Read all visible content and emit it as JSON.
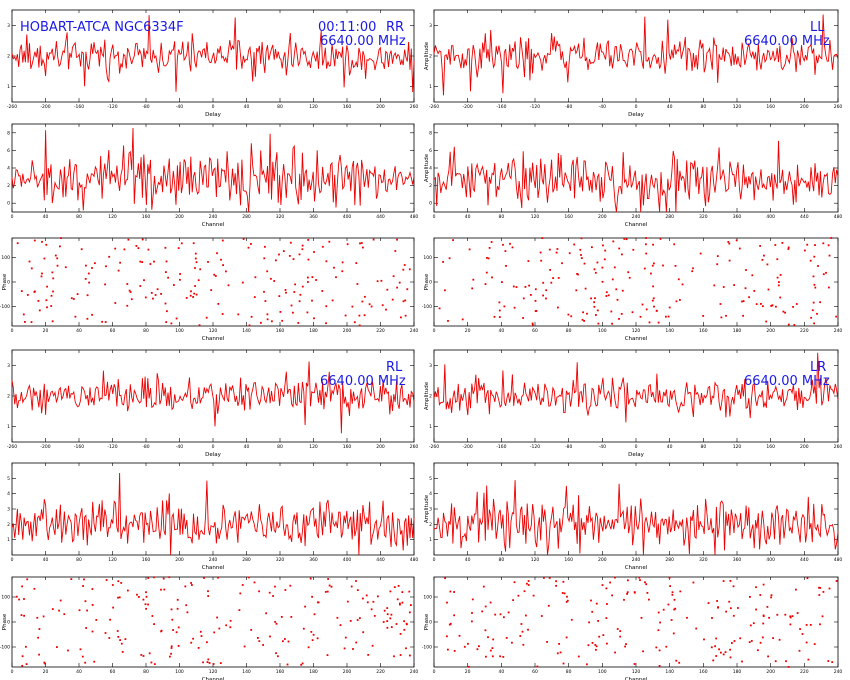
{
  "colors": {
    "trace": "#ee0000",
    "annotation": "#1a1ae6",
    "frame": "#000000"
  },
  "header": {
    "source": "HOBART-ATCA NGC6334F",
    "time": "00:11:00",
    "frequency": "6640.00 MHz"
  },
  "chart_data": [
    {
      "id": "rr_delay",
      "type": "line",
      "pol": "RR",
      "xlabel": "Delay",
      "ylabel": "",
      "xticks": [
        "-260",
        "-200",
        "-160",
        "-120",
        "-80",
        "-40",
        "0",
        "40",
        "80",
        "120",
        "160",
        "200",
        "260"
      ],
      "yticks": [
        "1",
        "2",
        "3"
      ],
      "ylim": [
        0.5,
        3.5
      ],
      "npoints": 300,
      "mean": 2.0,
      "spread": 0.35
    },
    {
      "id": "ll_delay",
      "type": "line",
      "pol": "LL",
      "xlabel": "Delay",
      "ylabel": "Amplitude",
      "xticks": [
        "-260",
        "-200",
        "-160",
        "-120",
        "-80",
        "-40",
        "0",
        "40",
        "80",
        "120",
        "160",
        "200",
        "260"
      ],
      "yticks": [
        "1",
        "2",
        "3"
      ],
      "ylim": [
        0.5,
        3.5
      ],
      "npoints": 300,
      "mean": 2.0,
      "spread": 0.35
    },
    {
      "id": "rr_channel",
      "type": "line",
      "pol": "RR",
      "xlabel": "Channel",
      "ylabel": "",
      "xticks": [
        "0",
        "40",
        "80",
        "120",
        "160",
        "200",
        "240",
        "280",
        "320",
        "360",
        "400",
        "440",
        "480"
      ],
      "yticks": [
        "0",
        "2",
        "4",
        "6",
        "8"
      ],
      "ylim": [
        -1,
        9
      ],
      "npoints": 300,
      "mean": 2.8,
      "spread": 1.6
    },
    {
      "id": "ll_channel",
      "type": "line",
      "pol": "LL",
      "xlabel": "Channel",
      "ylabel": "Amplitude",
      "xticks": [
        "0",
        "40",
        "80",
        "120",
        "160",
        "200",
        "240",
        "280",
        "320",
        "360",
        "400",
        "440",
        "480"
      ],
      "yticks": [
        "0",
        "2",
        "4",
        "6",
        "8"
      ],
      "ylim": [
        -1,
        9
      ],
      "npoints": 300,
      "mean": 2.6,
      "spread": 1.5
    },
    {
      "id": "rr_phase",
      "type": "scatter",
      "pol": "RR",
      "xlabel": "Channel",
      "ylabel": "Phase",
      "xticks": [
        "0",
        "20",
        "40",
        "60",
        "80",
        "100",
        "120",
        "140",
        "160",
        "180",
        "200",
        "220",
        "240"
      ],
      "yticks": [
        "-100",
        "0",
        "100"
      ],
      "ylim": [
        -180,
        180
      ],
      "npoints": 220
    },
    {
      "id": "ll_phase",
      "type": "scatter",
      "pol": "LL",
      "xlabel": "Channel",
      "ylabel": "Phase",
      "xticks": [
        "0",
        "20",
        "40",
        "60",
        "80",
        "100",
        "120",
        "140",
        "160",
        "180",
        "200",
        "220",
        "240"
      ],
      "yticks": [
        "-100",
        "0",
        "100"
      ],
      "ylim": [
        -180,
        180
      ],
      "npoints": 220
    },
    {
      "id": "rl_delay",
      "type": "line",
      "pol": "RL",
      "xlabel": "Delay",
      "ylabel": "",
      "xticks": [
        "-260",
        "-200",
        "-160",
        "-120",
        "-80",
        "-40",
        "0",
        "40",
        "80",
        "120",
        "160",
        "200",
        "260"
      ],
      "yticks": [
        "1",
        "2",
        "3"
      ],
      "ylim": [
        0.5,
        3.5
      ],
      "npoints": 300,
      "mean": 2.0,
      "spread": 0.35
    },
    {
      "id": "lr_delay",
      "type": "line",
      "pol": "LR",
      "xlabel": "Delay",
      "ylabel": "Amplitude",
      "xticks": [
        "-260",
        "-200",
        "-160",
        "-120",
        "-80",
        "-40",
        "0",
        "40",
        "80",
        "120",
        "160",
        "200",
        "260"
      ],
      "yticks": [
        "1",
        "2",
        "3"
      ],
      "ylim": [
        0.5,
        3.5
      ],
      "npoints": 300,
      "mean": 2.0,
      "spread": 0.35
    },
    {
      "id": "rl_channel",
      "type": "line",
      "pol": "RL",
      "xlabel": "Channel",
      "ylabel": "",
      "xticks": [
        "0",
        "40",
        "80",
        "120",
        "160",
        "200",
        "240",
        "280",
        "320",
        "360",
        "400",
        "440",
        "480"
      ],
      "yticks": [
        "1",
        "2",
        "3",
        "4",
        "5"
      ],
      "ylim": [
        0,
        6
      ],
      "npoints": 300,
      "mean": 2.0,
      "spread": 0.9
    },
    {
      "id": "lr_channel",
      "type": "line",
      "pol": "LR",
      "xlabel": "Channel",
      "ylabel": "Amplitude",
      "xticks": [
        "0",
        "40",
        "80",
        "120",
        "160",
        "200",
        "240",
        "280",
        "320",
        "360",
        "400",
        "440",
        "480"
      ],
      "yticks": [
        "1",
        "2",
        "3",
        "4",
        "5"
      ],
      "ylim": [
        0,
        6
      ],
      "npoints": 300,
      "mean": 2.0,
      "spread": 0.9
    },
    {
      "id": "rl_phase",
      "type": "scatter",
      "pol": "RL",
      "xlabel": "Channel",
      "ylabel": "Phase",
      "xticks": [
        "0",
        "20",
        "40",
        "60",
        "80",
        "100",
        "120",
        "140",
        "160",
        "180",
        "200",
        "220",
        "240"
      ],
      "yticks": [
        "-100",
        "0",
        "100"
      ],
      "ylim": [
        -180,
        180
      ],
      "npoints": 220
    },
    {
      "id": "lr_phase",
      "type": "scatter",
      "pol": "LR",
      "xlabel": "Channel",
      "ylabel": "Phase",
      "xticks": [
        "0",
        "20",
        "40",
        "60",
        "80",
        "100",
        "120",
        "140",
        "160",
        "180",
        "200",
        "220",
        "240"
      ],
      "yticks": [
        "-100",
        "0",
        "100"
      ],
      "ylim": [
        -180,
        180
      ],
      "npoints": 220
    }
  ]
}
